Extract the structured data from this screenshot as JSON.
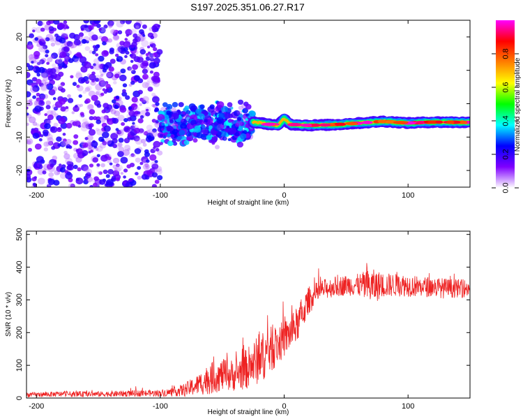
{
  "title": "S197.2025.351.06.27.R17",
  "chart_data": [
    {
      "type": "heatmap",
      "xlabel": "Height of straight line (km)",
      "ylabel": "Frequency (Hz)",
      "xlim": [
        -208,
        150
      ],
      "ylim": [
        -25,
        25
      ],
      "xticks": [
        -200,
        -100,
        0,
        100
      ],
      "xtick_labels": [
        "-200",
        "-100",
        "0",
        "100"
      ],
      "yticks": [
        -20,
        -10,
        0,
        10,
        20
      ],
      "ytick_labels": [
        "-20",
        "-10",
        "0",
        "10",
        "20"
      ],
      "ridge": {
        "description": "narrow high-amplitude line",
        "x": [
          -25,
          -15,
          -5,
          0,
          5,
          20,
          40,
          60,
          80,
          100,
          120,
          150
        ],
        "y": [
          -5.5,
          -6.0,
          -6.5,
          -4.5,
          -6.2,
          -6.5,
          -6.3,
          -5.8,
          -5.3,
          -5.8,
          -5.5,
          -5.6
        ],
        "amplitude_peak": 0.95
      },
      "scatter_regions": [
        {
          "x_range": [
            -208,
            -100
          ],
          "y_range": [
            -25,
            25
          ],
          "amplitude": "0.1-0.3"
        },
        {
          "x_range": [
            -100,
            -25
          ],
          "y_range": [
            -14,
            2
          ],
          "amplitude": "0.1-0.45"
        }
      ],
      "colorbar": {
        "label": "Normalized spectral amplitude",
        "range": [
          0,
          1
        ],
        "ticks": [
          0.0,
          0.2,
          0.4,
          0.6,
          0.8
        ],
        "tick_labels": [
          "0.0",
          "0.2",
          "0.4",
          "0.6",
          "0.8"
        ],
        "colormap": [
          "#ffffff",
          "#7f00ff",
          "#0000ff",
          "#00ffff",
          "#00ff00",
          "#ffff00",
          "#ff7f00",
          "#ff0000",
          "#ff00ff"
        ]
      }
    },
    {
      "type": "line",
      "xlabel": "Height of straight line (km)",
      "ylabel": "SNR (10 * v/v)",
      "xlim": [
        -208,
        150
      ],
      "ylim": [
        0,
        510
      ],
      "xticks": [
        -200,
        -100,
        0,
        100
      ],
      "xtick_labels": [
        "-200",
        "-100",
        "0",
        "100"
      ],
      "yticks": [
        0,
        100,
        200,
        300,
        400,
        500
      ],
      "ytick_labels": [
        "0",
        "100",
        "200",
        "300",
        "400",
        "500"
      ],
      "series": [
        {
          "name": "SNR",
          "color": "#ee2222",
          "x": [
            -208,
            -180,
            -150,
            -120,
            -100,
            -90,
            -80,
            -70,
            -60,
            -50,
            -40,
            -30,
            -20,
            -10,
            0,
            10,
            20,
            30,
            40,
            50,
            60,
            70,
            80,
            90,
            100,
            110,
            120,
            130,
            140,
            150
          ],
          "y_base": [
            10,
            12,
            12,
            14,
            15,
            18,
            25,
            40,
            60,
            70,
            70,
            90,
            120,
            150,
            180,
            220,
            300,
            330,
            340,
            345,
            345,
            340,
            345,
            345,
            345,
            340,
            340,
            335,
            335,
            335
          ],
          "y_spread": [
            10,
            12,
            12,
            14,
            15,
            18,
            30,
            45,
            70,
            70,
            70,
            90,
            110,
            100,
            80,
            80,
            60,
            45,
            45,
            45,
            50,
            80,
            55,
            50,
            50,
            45,
            45,
            45,
            40,
            40
          ]
        }
      ]
    }
  ]
}
